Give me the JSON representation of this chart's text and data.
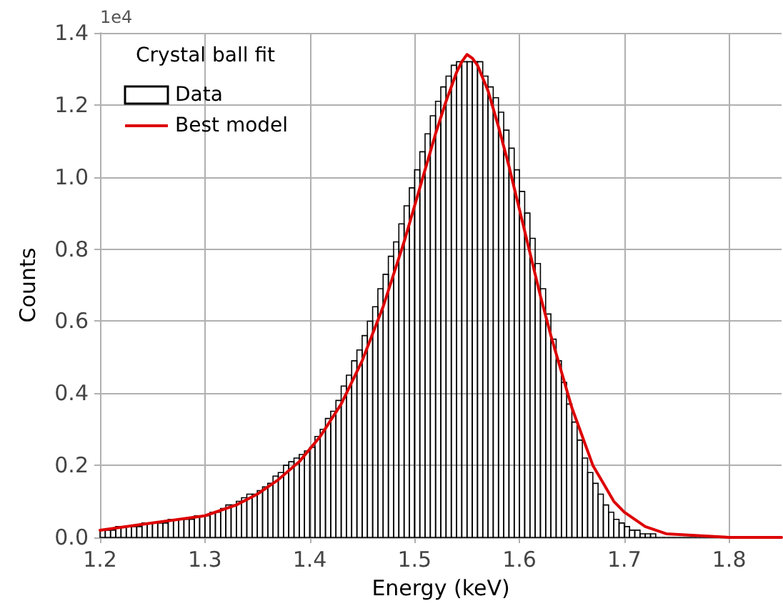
{
  "chart_data": {
    "type": "histogram",
    "xlabel": "Energy (keV)",
    "ylabel": "Counts",
    "legend_title": "Crystal ball fit",
    "annotations": [
      "1e4"
    ],
    "xlim": [
      1.2,
      1.85
    ],
    "xticks": [
      1.2,
      1.3,
      1.4,
      1.5,
      1.6,
      1.7,
      1.8
    ],
    "ylim": [
      0,
      1.4
    ],
    "yticks": [
      {
        "value": 0,
        "label": "0.0"
      },
      0.2,
      0.4,
      0.6,
      0.8,
      {
        "value": 1,
        "label": "1.0"
      },
      1.2,
      1.4
    ],
    "grid": true,
    "legend": "top left",
    "bins": [
      1.2,
      1.205,
      1.21,
      1.215,
      1.22,
      1.225,
      1.23,
      1.235,
      1.24,
      1.245,
      1.25,
      1.255,
      1.26,
      1.265,
      1.27,
      1.275,
      1.28,
      1.285,
      1.29,
      1.295,
      1.3,
      1.305,
      1.31,
      1.315,
      1.32,
      1.325,
      1.33,
      1.335,
      1.34,
      1.345,
      1.35,
      1.355,
      1.36,
      1.365,
      1.37,
      1.375,
      1.38,
      1.385,
      1.39,
      1.395,
      1.4,
      1.405,
      1.41,
      1.415,
      1.42,
      1.425,
      1.43,
      1.435,
      1.44,
      1.445,
      1.45,
      1.455,
      1.46,
      1.465,
      1.47,
      1.475,
      1.48,
      1.485,
      1.49,
      1.495,
      1.5,
      1.505,
      1.51,
      1.515,
      1.52,
      1.525,
      1.53,
      1.535,
      1.54,
      1.545,
      1.55,
      1.555,
      1.56,
      1.565,
      1.57,
      1.575,
      1.58,
      1.585,
      1.59,
      1.595,
      1.6,
      1.605,
      1.61,
      1.615,
      1.62,
      1.625,
      1.63,
      1.635,
      1.64,
      1.645,
      1.65,
      1.655,
      1.66,
      1.665,
      1.67,
      1.675,
      1.68,
      1.685,
      1.69,
      1.695,
      1.7,
      1.705,
      1.71,
      1.715,
      1.72,
      1.725,
      1.73,
      1.735,
      1.74,
      1.745,
      1.75,
      1.755,
      1.76,
      1.765,
      1.77,
      1.775,
      1.78,
      1.785,
      1.79,
      1.795,
      1.8
    ],
    "series": [
      {
        "name": "Data",
        "color": "#000000",
        "values": [
          0.02,
          0.02,
          0.02,
          0.03,
          0.03,
          0.03,
          0.03,
          0.03,
          0.04,
          0.04,
          0.04,
          0.04,
          0.04,
          0.05,
          0.05,
          0.05,
          0.05,
          0.05,
          0.06,
          0.06,
          0.06,
          0.07,
          0.07,
          0.08,
          0.09,
          0.09,
          0.1,
          0.11,
          0.12,
          0.12,
          0.13,
          0.14,
          0.15,
          0.17,
          0.18,
          0.2,
          0.21,
          0.22,
          0.23,
          0.24,
          0.25,
          0.28,
          0.3,
          0.33,
          0.35,
          0.38,
          0.42,
          0.45,
          0.49,
          0.52,
          0.56,
          0.6,
          0.64,
          0.69,
          0.73,
          0.78,
          0.82,
          0.87,
          0.92,
          0.97,
          1.02,
          1.07,
          1.12,
          1.17,
          1.21,
          1.25,
          1.28,
          1.31,
          1.32,
          1.32,
          1.32,
          1.32,
          1.32,
          1.28,
          1.25,
          1.22,
          1.18,
          1.13,
          1.08,
          1.02,
          0.96,
          0.9,
          0.83,
          0.76,
          0.69,
          0.62,
          0.55,
          0.49,
          0.43,
          0.37,
          0.32,
          0.27,
          0.22,
          0.18,
          0.15,
          0.12,
          0.09,
          0.07,
          0.05,
          0.04,
          0.03,
          0.02,
          0.02,
          0.01,
          0.01,
          0.01,
          0,
          0,
          0,
          0,
          0,
          0,
          0,
          0,
          0,
          0,
          0,
          0,
          0,
          0
        ]
      },
      {
        "name": "Best model",
        "type": "line",
        "color": "#dd0000",
        "line_style": "solid",
        "marker": "none",
        "x": [
          1.2,
          1.25,
          1.3,
          1.33,
          1.35,
          1.37,
          1.39,
          1.41,
          1.43,
          1.45,
          1.47,
          1.49,
          1.51,
          1.52,
          1.53,
          1.54,
          1.545,
          1.55,
          1.555,
          1.56,
          1.57,
          1.58,
          1.59,
          1.6,
          1.61,
          1.62,
          1.63,
          1.64,
          1.65,
          1.66,
          1.67,
          1.68,
          1.69,
          1.7,
          1.72,
          1.74,
          1.8,
          1.85
        ],
        "values": [
          0.02,
          0.04,
          0.06,
          0.09,
          0.12,
          0.16,
          0.21,
          0.28,
          0.37,
          0.49,
          0.64,
          0.82,
          1.02,
          1.12,
          1.21,
          1.29,
          1.32,
          1.34,
          1.33,
          1.31,
          1.24,
          1.14,
          1.03,
          0.91,
          0.79,
          0.67,
          0.56,
          0.46,
          0.36,
          0.28,
          0.2,
          0.15,
          0.1,
          0.07,
          0.03,
          0.01,
          0,
          0
        ]
      }
    ]
  }
}
